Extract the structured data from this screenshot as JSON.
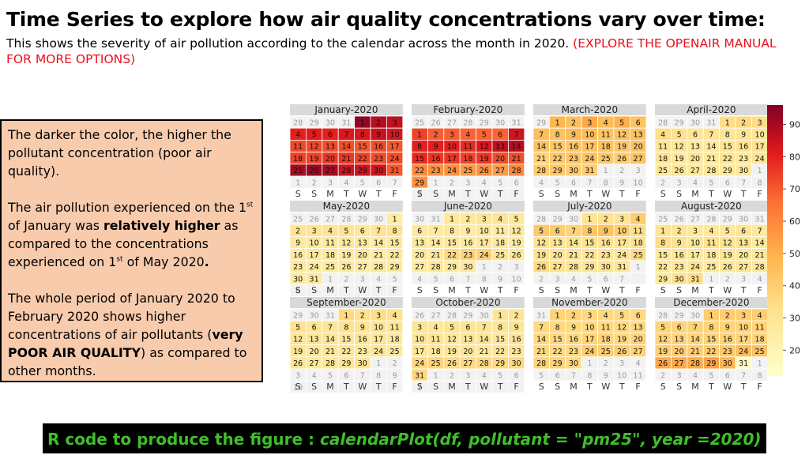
{
  "header": {
    "title": "Time Series to explore how air quality concentrations vary over time:",
    "subtitle": "This shows the severity of air pollution according to the calendar across the month in 2020.",
    "subtitle_note": "(EXPLORE THE OPENAIR MANUAL FOR MORE OPTIONS)"
  },
  "notes": {
    "p1": "The darker the color, the higher the pollutant concentration (poor air quality).",
    "p2_a": "The air pollution experienced on the 1",
    "p2_sup1": "st",
    "p2_b": " of January was ",
    "p2_bold": "relatively higher",
    "p2_c": "  as compared to the concentrations experienced on 1",
    "p2_sup2": "st",
    "p2_d": " of May 2020",
    "p2_e": ".",
    "p3_a": "The whole period of January 2020 to February 2020 shows higher concentrations of air pollutants (",
    "p3_bold": "very POOR AIR QUALITY",
    "p3_c": ") as compared to other months."
  },
  "footer": {
    "code_label": "R code to produce the figure : ",
    "code": "calendarPlot(df, pollutant = \"pm25\", year =2020)"
  },
  "chart_data": {
    "type": "heatmap",
    "year": 2020,
    "weekday_labels": [
      "S",
      "S",
      "M",
      "T",
      "W",
      "T",
      "F"
    ],
    "colorbar": {
      "min": 12,
      "max": 96,
      "ticks": [
        20,
        30,
        40,
        50,
        60,
        70,
        80,
        90
      ]
    },
    "months": [
      {
        "title": "January-2020",
        "prev_days": [
          28,
          29,
          30,
          31
        ],
        "days": [
          93,
          88,
          86,
          80,
          81,
          80,
          82,
          82,
          85,
          83,
          73,
          73,
          72,
          72,
          70,
          72,
          70,
          74,
          74,
          76,
          76,
          74,
          72,
          72,
          90,
          92,
          90,
          84,
          84,
          84,
          70
        ],
        "next_days": [
          1,
          2,
          3,
          4,
          5,
          6,
          7
        ]
      },
      {
        "title": "February-2020",
        "prev_days": [
          25,
          26,
          27,
          28,
          29,
          30,
          31
        ],
        "days": [
          74,
          69,
          69,
          68,
          68,
          68,
          84,
          80,
          80,
          80,
          78,
          82,
          86,
          88,
          78,
          76,
          76,
          74,
          76,
          72,
          72,
          60,
          58,
          58,
          56,
          58,
          55,
          60,
          58
        ],
        "next_days": [
          1,
          2,
          3,
          4,
          5,
          6,
          7
        ]
      },
      {
        "title": "March-2020",
        "prev_days": [
          29
        ],
        "days": [
          48,
          45,
          52,
          46,
          50,
          44,
          45,
          44,
          47,
          46,
          43,
          44,
          44,
          44,
          42,
          43,
          44,
          44,
          42,
          44,
          38,
          42,
          43,
          44,
          42,
          40,
          44,
          40,
          42,
          40,
          40
        ],
        "next_days": [
          1,
          2,
          3,
          4,
          5,
          6,
          7,
          8,
          9,
          10
        ]
      },
      {
        "title": "April-2020",
        "prev_days": [
          28,
          29,
          30,
          31
        ],
        "days": [
          34,
          36,
          34,
          34,
          32,
          30,
          30,
          30,
          30,
          30,
          30,
          30,
          28,
          28,
          30,
          32,
          32,
          30,
          28,
          30,
          28,
          30,
          28,
          30,
          28,
          30,
          28,
          28,
          27,
          28
        ],
        "next_days": [
          1,
          2,
          3,
          4,
          5,
          6,
          7,
          8
        ]
      },
      {
        "title": "May-2020",
        "prev_days": [
          25,
          26,
          27,
          28,
          29,
          30
        ],
        "days": [
          25,
          30,
          30,
          30,
          30,
          28,
          30,
          30,
          28,
          28,
          28,
          28,
          28,
          26,
          28,
          26,
          28,
          28,
          26,
          28,
          26,
          28,
          28,
          26,
          27,
          28,
          26,
          28,
          28,
          26,
          28
        ],
        "next_days": [
          1,
          2,
          3,
          4,
          5,
          6
        ]
      },
      {
        "title": "June-2020",
        "prev_days": [
          30,
          31
        ],
        "days": [
          28,
          28,
          30,
          30,
          28,
          28,
          26,
          28,
          26,
          28,
          26,
          28,
          28,
          26,
          28,
          26,
          28,
          28,
          26,
          28,
          26,
          36,
          38,
          38,
          30,
          28,
          26,
          28,
          26,
          28
        ],
        "next_days": [
          1,
          2,
          3,
          4,
          5,
          6,
          7,
          8,
          9,
          10
        ]
      },
      {
        "title": "July-2020",
        "prev_days": [
          28,
          29,
          30
        ],
        "days": [
          30,
          32,
          30,
          40,
          42,
          40,
          38,
          42,
          44,
          40,
          34,
          32,
          30,
          32,
          32,
          30,
          30,
          32,
          32,
          30,
          30,
          30,
          30,
          30,
          36,
          36,
          32,
          30,
          30,
          30,
          30
        ],
        "next_days": [
          1,
          2,
          3,
          4,
          5,
          6,
          7
        ]
      },
      {
        "title": "August-2020",
        "prev_days": [
          25,
          26,
          27,
          28,
          29,
          30,
          31
        ],
        "days": [
          30,
          30,
          28,
          28,
          28,
          30,
          28,
          34,
          32,
          30,
          32,
          32,
          32,
          28,
          28,
          30,
          28,
          28,
          30,
          28,
          28,
          28,
          28,
          30,
          28,
          28,
          30,
          28,
          28,
          32,
          34
        ],
        "next_days": [
          1,
          2,
          3,
          4
        ]
      },
      {
        "title": "September-2020",
        "prev_days": [
          29,
          30,
          31
        ],
        "days": [
          36,
          32,
          34,
          32,
          32,
          30,
          30,
          32,
          30,
          30,
          30,
          30,
          30,
          30,
          28,
          30,
          30,
          28,
          30,
          28,
          30,
          30,
          28,
          30,
          28,
          30,
          28,
          30,
          30,
          30
        ],
        "next_days": [
          1,
          2,
          3,
          4,
          5,
          6,
          7,
          8,
          9,
          10
        ]
      },
      {
        "title": "October-2020",
        "prev_days": [
          26,
          27,
          28,
          29,
          30
        ],
        "days": [
          30,
          30,
          30,
          28,
          30,
          30,
          30,
          30,
          30,
          30,
          30,
          28,
          30,
          30,
          28,
          30,
          30,
          28,
          30,
          30,
          28,
          30,
          30,
          36,
          38,
          36,
          36,
          36,
          36,
          36,
          36
        ],
        "next_days": [
          1,
          2,
          3,
          4,
          5,
          6,
          7
        ]
      },
      {
        "title": "November-2020",
        "prev_days": [
          31
        ],
        "days": [
          38,
          38,
          36,
          36,
          36,
          36,
          36,
          36,
          36,
          36,
          36,
          36,
          36,
          36,
          36,
          36,
          38,
          38,
          36,
          38,
          36,
          36,
          36,
          40,
          40,
          40,
          38,
          38,
          38,
          36
        ],
        "next_days": [
          1,
          2,
          3,
          4,
          5,
          6,
          7,
          8,
          9,
          10,
          11
        ]
      },
      {
        "title": "December-2020",
        "prev_days": [
          28,
          29,
          30
        ],
        "days": [
          40,
          40,
          40,
          40,
          38,
          38,
          38,
          38,
          38,
          38,
          38,
          38,
          38,
          38,
          38,
          38,
          38,
          38,
          40,
          40,
          40,
          40,
          42,
          46,
          44,
          52,
          52,
          52,
          54,
          48,
          14
        ],
        "next_days": [
          1,
          2,
          3,
          4,
          5,
          6,
          7,
          8
        ]
      }
    ]
  }
}
